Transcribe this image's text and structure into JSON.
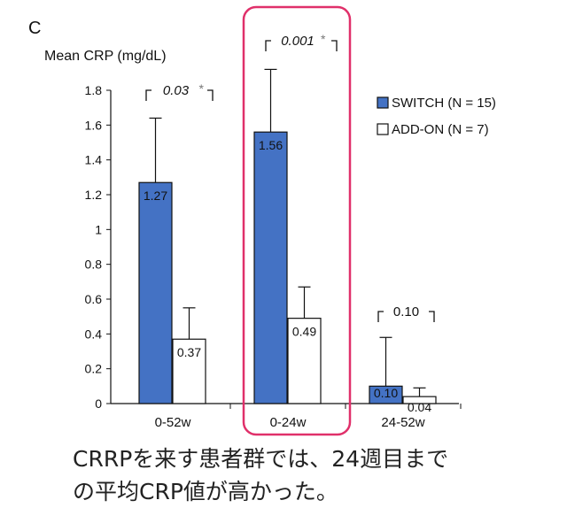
{
  "panel_label": "C",
  "caption": "CRRPを来す患者群では、24週目まで\nの平均CRP値が高かった。",
  "chart_data": {
    "type": "bar",
    "ylabel": "Mean CRP (mg/dL)",
    "ylim": [
      0,
      1.8
    ],
    "yticks": [
      "0",
      "0.2",
      "0.4",
      "0.6",
      "0.8",
      "1",
      "1.2",
      "1.4",
      "1.6",
      "1.8"
    ],
    "categories": [
      "0-52w",
      "0-24w",
      "24-52w"
    ],
    "series": [
      {
        "name": "SWITCH (N = 15)",
        "color": "#4472c4",
        "values": [
          1.27,
          1.56,
          0.1
        ],
        "labels": [
          "1.27",
          "1.56",
          "0.10"
        ],
        "error_upper": [
          1.64,
          1.92,
          0.38
        ]
      },
      {
        "name": "ADD-ON (N = 7)",
        "color": "#ffffff",
        "values": [
          0.37,
          0.49,
          0.04
        ],
        "labels": [
          "0.37",
          "0.49",
          "0.04"
        ],
        "error_upper": [
          0.55,
          0.67,
          0.09
        ]
      }
    ],
    "pvalues": [
      "0.03",
      "0.001",
      "0.10"
    ],
    "significance_marks": [
      "*",
      "*",
      ""
    ],
    "highlight_category": "0-24w",
    "highlight_color": "#e0306a",
    "legend_position": "right"
  }
}
